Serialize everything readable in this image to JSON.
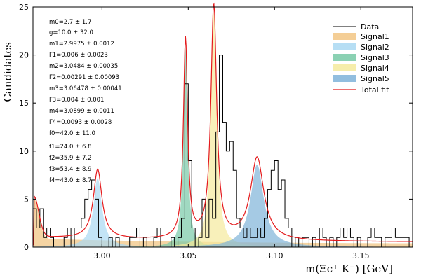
{
  "chart_data": {
    "type": "line",
    "xlabel": "m(Ξc⁺ K⁻) [GeV]",
    "ylabel": "Candidates",
    "xlim": [
      2.96,
      3.18
    ],
    "ylim": [
      0,
      25
    ],
    "x_ticks": [
      "3.00",
      "3.05",
      "3.10",
      "3.15"
    ],
    "x_tick_values": [
      3.0,
      3.05,
      3.1,
      3.15
    ],
    "y_ticks": [
      "0",
      "5",
      "10",
      "15",
      "20",
      "25"
    ],
    "y_tick_values": [
      0,
      5,
      10,
      15,
      20,
      25
    ],
    "parameters": [
      "m0=2.7 ± 1.7",
      "g=10.0 ± 32.0",
      "m1=2.9975 ± 0.0012",
      "Γ1=0.006 ± 0.0023",
      "m2=3.0484 ± 0.00035",
      "Γ2=0.00291 ± 0.00093",
      "m3=3.06478 ± 0.00041",
      "Γ3=0.004 ± 0.001",
      "m4=3.0899 ± 0.0011",
      "Γ4=0.0093 ± 0.0028",
      "f0=42.0 ± 11.0",
      "f1=24.0 ± 6.8",
      "f2=35.9 ± 7.2",
      "f3=53.4 ± 8.9",
      "f4=43.0 ± 8.7"
    ],
    "legend": {
      "position": "top-right",
      "entries": [
        {
          "label": "Data",
          "kind": "line",
          "color": "#000000"
        },
        {
          "label": "Signal1",
          "kind": "fill",
          "color": "#f2c584"
        },
        {
          "label": "Signal2",
          "kind": "fill",
          "color": "#a9d8f2"
        },
        {
          "label": "Signal3",
          "kind": "fill",
          "color": "#77c9a6"
        },
        {
          "label": "Signal4",
          "kind": "fill",
          "color": "#f5ea9c"
        },
        {
          "label": "Signal5",
          "kind": "fill",
          "color": "#7fb3d9"
        },
        {
          "label": "Total fit",
          "kind": "line",
          "color": "#e41a1c"
        }
      ]
    },
    "histogram": {
      "bin_width": 0.002,
      "start": 2.96,
      "counts": [
        4,
        2,
        4,
        1,
        2,
        1,
        0,
        0,
        0,
        1,
        2,
        0,
        2,
        2,
        3,
        5,
        6,
        7,
        5,
        1,
        0,
        0,
        1,
        0,
        1,
        0,
        0,
        0,
        1,
        1,
        2,
        0,
        1,
        0,
        0,
        1,
        2,
        0,
        0,
        0,
        1,
        0,
        1,
        3,
        17,
        9,
        2,
        0,
        1,
        5,
        1,
        5,
        3,
        12,
        20,
        13,
        10,
        11,
        8,
        3,
        2,
        1,
        2,
        1,
        1,
        2,
        1,
        3,
        6,
        8,
        9,
        6,
        7,
        3,
        2,
        0,
        1,
        0,
        1,
        1,
        0,
        1,
        0,
        2,
        1,
        0,
        1,
        0,
        1,
        2,
        1,
        2,
        1,
        0,
        1,
        0,
        0,
        1,
        2,
        1,
        1,
        0,
        1,
        1,
        2,
        1,
        1,
        1,
        1,
        0,
        1
      ]
    },
    "model": {
      "threshold": 2.9605,
      "threshold_amp": 4.2,
      "threshold_tail": 0.55,
      "peaks": [
        {
          "name": "Signal2",
          "mass": 2.9975,
          "width": 0.006,
          "amp": 7.2
        },
        {
          "name": "Signal3",
          "mass": 3.0484,
          "width": 0.00291,
          "amp": 20.8
        },
        {
          "name": "Signal4",
          "mass": 3.06478,
          "width": 0.004,
          "amp": 24.5
        },
        {
          "name": "Signal5",
          "mass": 3.0899,
          "width": 0.0093,
          "amp": 8.6
        }
      ]
    }
  }
}
